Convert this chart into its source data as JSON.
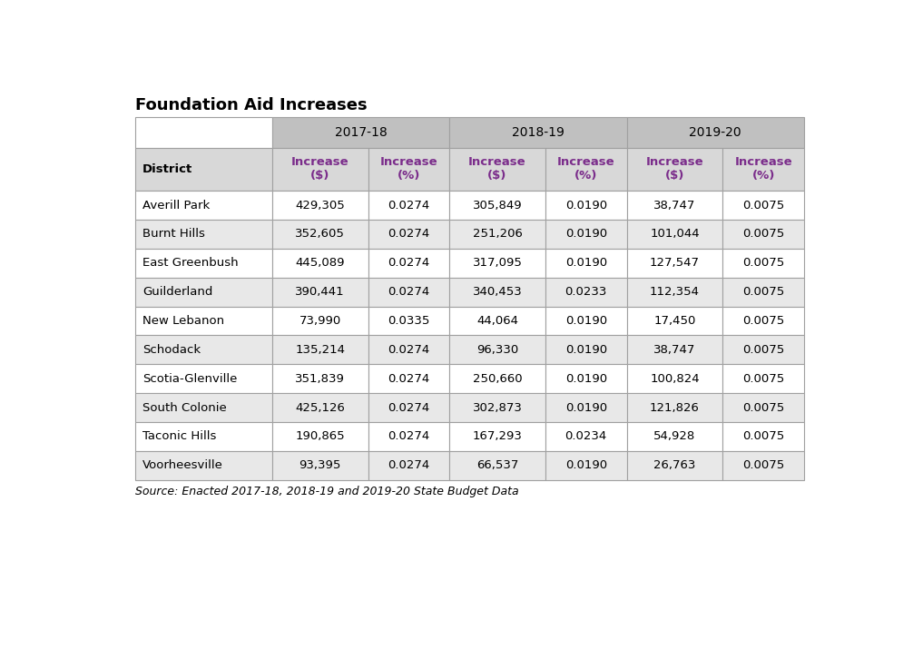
{
  "title": "Foundation Aid Increases",
  "source": "Source: Enacted 2017-18, 2018-19 and 2019-20 State Budget Data",
  "year_headers": [
    "2017-18",
    "2018-19",
    "2019-20"
  ],
  "sub_headers": [
    "Increase\n($)",
    "Increase\n(%)",
    "Increase\n($)",
    "Increase\n(%)",
    "Increase\n($)",
    "Increase\n(%)"
  ],
  "districts": [
    "Averill Park",
    "Burnt Hills",
    "East Greenbush",
    "Guilderland",
    "New Lebanon",
    "Schodack",
    "Scotia-Glenville",
    "South Colonie",
    "Taconic Hills",
    "Voorheesville"
  ],
  "data": [
    [
      "429,305",
      "0.0274",
      "305,849",
      "0.0190",
      "38,747",
      "0.0075"
    ],
    [
      "352,605",
      "0.0274",
      "251,206",
      "0.0190",
      "101,044",
      "0.0075"
    ],
    [
      "445,089",
      "0.0274",
      "317,095",
      "0.0190",
      "127,547",
      "0.0075"
    ],
    [
      "390,441",
      "0.0274",
      "340,453",
      "0.0233",
      "112,354",
      "0.0075"
    ],
    [
      "73,990",
      "0.0335",
      "44,064",
      "0.0190",
      "17,450",
      "0.0075"
    ],
    [
      "135,214",
      "0.0274",
      "96,330",
      "0.0190",
      "38,747",
      "0.0075"
    ],
    [
      "351,839",
      "0.0274",
      "250,660",
      "0.0190",
      "100,824",
      "0.0075"
    ],
    [
      "425,126",
      "0.0274",
      "302,873",
      "0.0190",
      "121,826",
      "0.0075"
    ],
    [
      "190,865",
      "0.0274",
      "167,293",
      "0.0234",
      "54,928",
      "0.0075"
    ],
    [
      "93,395",
      "0.0274",
      "66,537",
      "0.0190",
      "26,763",
      "0.0075"
    ]
  ],
  "header_bg": "#C0C0C0",
  "white_bg": "#FFFFFF",
  "subheader_bg": "#D8D8D8",
  "row_bg_even": "#FFFFFF",
  "row_bg_odd": "#E8E8E8",
  "border_color": "#A0A0A0",
  "title_color": "#000000",
  "header_text_color": "#7B2D8B",
  "district_bold_color": "#000000",
  "data_text_color": "#000000",
  "source_text_color": "#000000",
  "fig_bg": "#FFFFFF",
  "title_fontsize": 13,
  "year_fontsize": 10,
  "subheader_fontsize": 9.5,
  "data_fontsize": 9.5,
  "source_fontsize": 9
}
